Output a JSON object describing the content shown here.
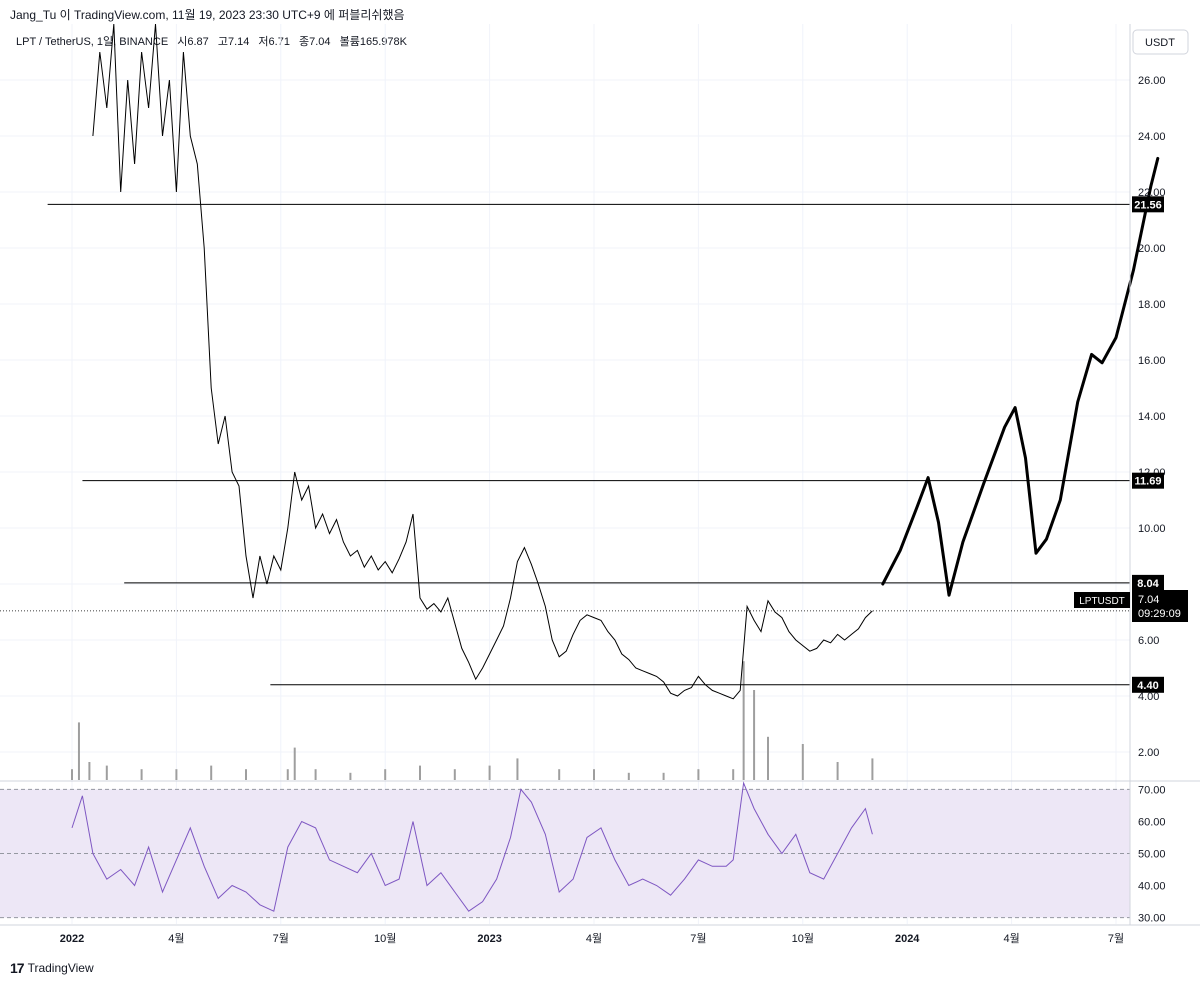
{
  "header": {
    "credit": "Jang_Tu 이 TradingView.com, 11월 19, 2023 23:30 UTC+9 에 퍼블리쉬했음"
  },
  "legend": {
    "symbol": "LPT / TetherUS, 1일, BINANCE",
    "open": "시6.87",
    "high": "고7.14",
    "low": "저6.71",
    "close": "종7.04",
    "volume": "볼륨165.978K"
  },
  "currency_button": "USDT",
  "price_tag": {
    "symbol": "LPTUSDT",
    "price": "7.04",
    "countdown": "09:29:09"
  },
  "footer": {
    "brand": "TradingView",
    "logo": "17"
  },
  "colors": {
    "candle": "#000000",
    "rsi_line": "#7e57c2",
    "rsi_ma": "#f7c948",
    "rsi_band": "#ede7f6",
    "projection": "#000000"
  },
  "chart_data": {
    "type": "line",
    "price_axis": {
      "min": 1,
      "max": 28,
      "ticks": [
        "26.00",
        "24.00",
        "22.00",
        "20.00",
        "18.00",
        "16.00",
        "14.00",
        "12.00",
        "10.00",
        "8.00",
        "6.00",
        "4.00",
        "2.00"
      ],
      "tick_values": [
        26,
        24,
        22,
        20,
        18,
        16,
        14,
        12,
        10,
        8,
        6,
        4,
        2
      ]
    },
    "time_axis": {
      "labels": [
        {
          "text": "2022",
          "t": 0,
          "bold": true
        },
        {
          "text": "4월",
          "t": 3
        },
        {
          "text": "7월",
          "t": 6
        },
        {
          "text": "10월",
          "t": 9
        },
        {
          "text": "2023",
          "t": 12,
          "bold": true
        },
        {
          "text": "4월",
          "t": 15
        },
        {
          "text": "7월",
          "t": 18
        },
        {
          "text": "10월",
          "t": 21
        },
        {
          "text": "2024",
          "t": 24,
          "bold": true
        },
        {
          "text": "4월",
          "t": 27
        },
        {
          "text": "7월",
          "t": 30
        }
      ]
    },
    "horizontal_levels": [
      {
        "value": 21.56,
        "label": "21.56",
        "from_t": -0.7
      },
      {
        "value": 11.69,
        "label": "11.69",
        "from_t": 0.3
      },
      {
        "value": 8.04,
        "label": "8.04",
        "from_t": 1.5
      },
      {
        "value": 4.4,
        "label": "4.40",
        "from_t": 5.7
      }
    ],
    "last_price": 7.04,
    "price_path": [
      [
        0.6,
        24
      ],
      [
        0.8,
        27
      ],
      [
        1.0,
        25
      ],
      [
        1.2,
        28
      ],
      [
        1.4,
        22
      ],
      [
        1.6,
        26
      ],
      [
        1.8,
        23
      ],
      [
        2.0,
        27
      ],
      [
        2.2,
        25
      ],
      [
        2.4,
        28
      ],
      [
        2.6,
        24
      ],
      [
        2.8,
        26
      ],
      [
        3.0,
        22
      ],
      [
        3.2,
        27
      ],
      [
        3.4,
        24
      ],
      [
        3.6,
        23
      ],
      [
        3.8,
        20
      ],
      [
        4.0,
        15
      ],
      [
        4.2,
        13
      ],
      [
        4.4,
        14
      ],
      [
        4.6,
        12
      ],
      [
        4.8,
        11.5
      ],
      [
        5.0,
        9
      ],
      [
        5.2,
        7.5
      ],
      [
        5.4,
        9
      ],
      [
        5.6,
        8
      ],
      [
        5.8,
        9
      ],
      [
        6.0,
        8.5
      ],
      [
        6.2,
        10
      ],
      [
        6.4,
        12
      ],
      [
        6.6,
        11
      ],
      [
        6.8,
        11.5
      ],
      [
        7.0,
        10
      ],
      [
        7.2,
        10.5
      ],
      [
        7.4,
        9.8
      ],
      [
        7.6,
        10.3
      ],
      [
        7.8,
        9.5
      ],
      [
        8.0,
        9
      ],
      [
        8.2,
        9.2
      ],
      [
        8.4,
        8.6
      ],
      [
        8.6,
        9
      ],
      [
        8.8,
        8.5
      ],
      [
        9.0,
        8.8
      ],
      [
        9.2,
        8.4
      ],
      [
        9.4,
        8.9
      ],
      [
        9.6,
        9.5
      ],
      [
        9.8,
        10.5
      ],
      [
        10.0,
        7.5
      ],
      [
        10.2,
        7.1
      ],
      [
        10.4,
        7.3
      ],
      [
        10.6,
        7.0
      ],
      [
        10.8,
        7.5
      ],
      [
        11.0,
        6.6
      ],
      [
        11.2,
        5.7
      ],
      [
        11.4,
        5.2
      ],
      [
        11.6,
        4.6
      ],
      [
        11.8,
        5.0
      ],
      [
        12.0,
        5.5
      ],
      [
        12.2,
        6.0
      ],
      [
        12.4,
        6.5
      ],
      [
        12.6,
        7.5
      ],
      [
        12.8,
        8.8
      ],
      [
        13.0,
        9.3
      ],
      [
        13.2,
        8.7
      ],
      [
        13.4,
        8.0
      ],
      [
        13.6,
        7.2
      ],
      [
        13.8,
        6.0
      ],
      [
        14.0,
        5.4
      ],
      [
        14.2,
        5.6
      ],
      [
        14.4,
        6.2
      ],
      [
        14.6,
        6.7
      ],
      [
        14.8,
        6.9
      ],
      [
        15.0,
        6.8
      ],
      [
        15.2,
        6.7
      ],
      [
        15.4,
        6.3
      ],
      [
        15.6,
        6.0
      ],
      [
        15.8,
        5.5
      ],
      [
        16.0,
        5.3
      ],
      [
        16.2,
        5.0
      ],
      [
        16.4,
        4.9
      ],
      [
        16.6,
        4.8
      ],
      [
        16.8,
        4.7
      ],
      [
        17.0,
        4.5
      ],
      [
        17.2,
        4.1
      ],
      [
        17.4,
        4.0
      ],
      [
        17.6,
        4.2
      ],
      [
        17.8,
        4.3
      ],
      [
        18.0,
        4.7
      ],
      [
        18.2,
        4.4
      ],
      [
        18.4,
        4.2
      ],
      [
        18.6,
        4.1
      ],
      [
        18.8,
        4.0
      ],
      [
        19.0,
        3.9
      ],
      [
        19.2,
        4.2
      ],
      [
        19.4,
        7.2
      ],
      [
        19.6,
        6.7
      ],
      [
        19.8,
        6.3
      ],
      [
        20.0,
        7.4
      ],
      [
        20.2,
        7.0
      ],
      [
        20.4,
        6.8
      ],
      [
        20.6,
        6.3
      ],
      [
        20.8,
        6.0
      ],
      [
        21.0,
        5.8
      ],
      [
        21.2,
        5.6
      ],
      [
        21.4,
        5.7
      ],
      [
        21.6,
        6.0
      ],
      [
        21.8,
        5.9
      ],
      [
        22.0,
        6.2
      ],
      [
        22.2,
        6.0
      ],
      [
        22.4,
        6.2
      ],
      [
        22.6,
        6.4
      ],
      [
        22.8,
        6.8
      ],
      [
        23.0,
        7.04
      ]
    ],
    "volume_path": [
      [
        0.0,
        0.3
      ],
      [
        0.2,
        1.6
      ],
      [
        0.5,
        0.5
      ],
      [
        1.0,
        0.4
      ],
      [
        2.0,
        0.3
      ],
      [
        3.0,
        0.3
      ],
      [
        4.0,
        0.4
      ],
      [
        5.0,
        0.3
      ],
      [
        6.2,
        0.3
      ],
      [
        6.4,
        0.9
      ],
      [
        7.0,
        0.3
      ],
      [
        8.0,
        0.2
      ],
      [
        9.0,
        0.3
      ],
      [
        10.0,
        0.4
      ],
      [
        11.0,
        0.3
      ],
      [
        12.0,
        0.4
      ],
      [
        12.8,
        0.6
      ],
      [
        14.0,
        0.3
      ],
      [
        15.0,
        0.3
      ],
      [
        16.0,
        0.2
      ],
      [
        17.0,
        0.2
      ],
      [
        18.0,
        0.3
      ],
      [
        19.0,
        0.3
      ],
      [
        19.3,
        3.3
      ],
      [
        19.6,
        2.5
      ],
      [
        20.0,
        1.2
      ],
      [
        21.0,
        1.0
      ],
      [
        22.0,
        0.5
      ],
      [
        23.0,
        0.6
      ]
    ],
    "rsi": {
      "min": 28,
      "max": 72,
      "ticks": [
        "70.00",
        "60.00",
        "50.00",
        "40.00",
        "30.00"
      ],
      "tick_values": [
        70,
        60,
        50,
        40,
        30
      ],
      "band": [
        30,
        70
      ],
      "midline": 50,
      "path": [
        [
          0.0,
          58
        ],
        [
          0.3,
          68
        ],
        [
          0.6,
          50
        ],
        [
          1.0,
          42
        ],
        [
          1.4,
          45
        ],
        [
          1.8,
          40
        ],
        [
          2.2,
          52
        ],
        [
          2.6,
          38
        ],
        [
          3.0,
          48
        ],
        [
          3.4,
          58
        ],
        [
          3.8,
          46
        ],
        [
          4.2,
          36
        ],
        [
          4.6,
          40
        ],
        [
          5.0,
          38
        ],
        [
          5.4,
          34
        ],
        [
          5.8,
          32
        ],
        [
          6.2,
          52
        ],
        [
          6.6,
          60
        ],
        [
          7.0,
          58
        ],
        [
          7.4,
          48
        ],
        [
          7.8,
          46
        ],
        [
          8.2,
          44
        ],
        [
          8.6,
          50
        ],
        [
          9.0,
          40
        ],
        [
          9.4,
          42
        ],
        [
          9.8,
          60
        ],
        [
          10.2,
          40
        ],
        [
          10.6,
          44
        ],
        [
          11.0,
          38
        ],
        [
          11.4,
          32
        ],
        [
          11.8,
          35
        ],
        [
          12.2,
          42
        ],
        [
          12.6,
          55
        ],
        [
          12.9,
          70
        ],
        [
          13.2,
          66
        ],
        [
          13.6,
          56
        ],
        [
          14.0,
          38
        ],
        [
          14.4,
          42
        ],
        [
          14.8,
          55
        ],
        [
          15.2,
          58
        ],
        [
          15.6,
          48
        ],
        [
          16.0,
          40
        ],
        [
          16.4,
          42
        ],
        [
          16.8,
          40
        ],
        [
          17.2,
          37
        ],
        [
          17.6,
          42
        ],
        [
          18.0,
          48
        ],
        [
          18.4,
          46
        ],
        [
          18.8,
          46
        ],
        [
          19.0,
          48
        ],
        [
          19.3,
          72
        ],
        [
          19.6,
          64
        ],
        [
          20.0,
          56
        ],
        [
          20.4,
          50
        ],
        [
          20.8,
          56
        ],
        [
          21.2,
          44
        ],
        [
          21.6,
          42
        ],
        [
          22.0,
          50
        ],
        [
          22.4,
          58
        ],
        [
          22.8,
          64
        ],
        [
          23.0,
          56
        ]
      ]
    },
    "projection_path": [
      [
        23.3,
        8.0
      ],
      [
        23.8,
        9.2
      ],
      [
        24.3,
        10.8
      ],
      [
        24.6,
        11.8
      ],
      [
        24.9,
        10.2
      ],
      [
        25.2,
        7.6
      ],
      [
        25.6,
        9.5
      ],
      [
        26.2,
        11.6
      ],
      [
        26.8,
        13.6
      ],
      [
        27.1,
        14.3
      ],
      [
        27.4,
        12.5
      ],
      [
        27.7,
        9.1
      ],
      [
        28.0,
        9.6
      ],
      [
        28.4,
        11.0
      ],
      [
        28.9,
        14.5
      ],
      [
        29.3,
        16.2
      ],
      [
        29.6,
        15.9
      ],
      [
        30.0,
        16.8
      ],
      [
        30.5,
        19.2
      ],
      [
        31.0,
        22.2
      ],
      [
        31.2,
        23.2
      ]
    ]
  }
}
